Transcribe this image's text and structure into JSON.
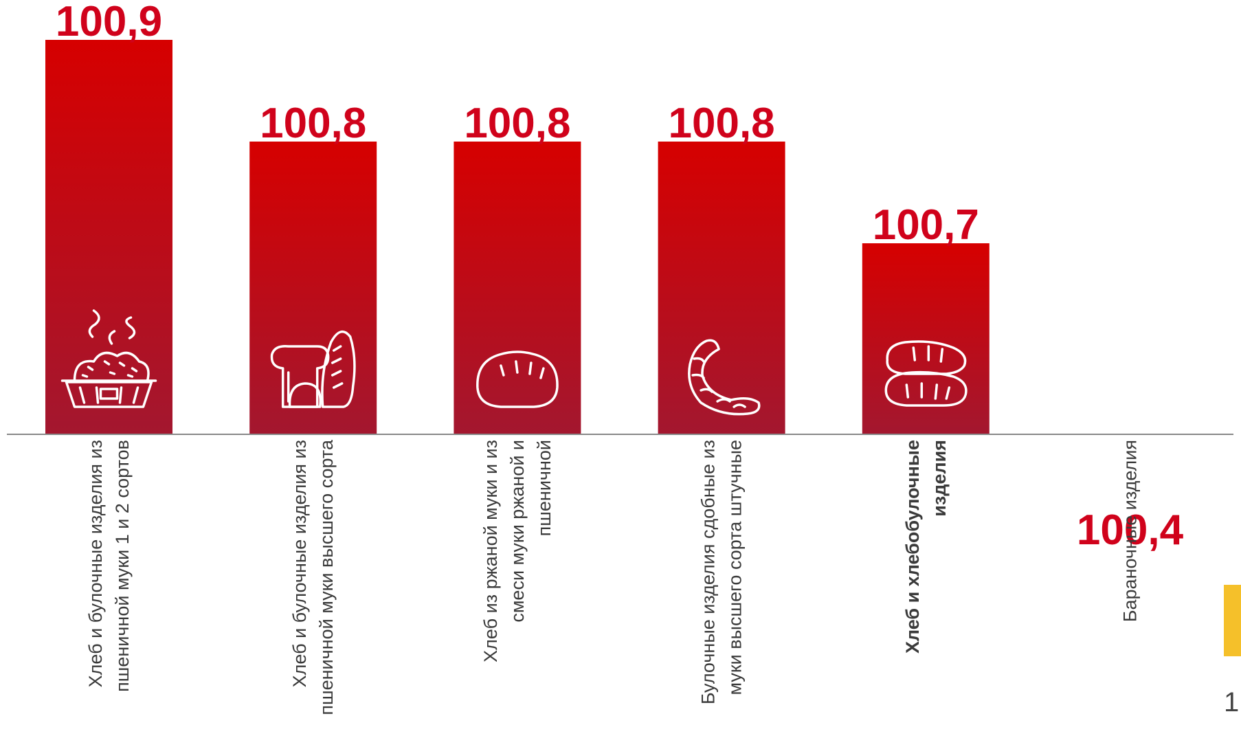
{
  "chart_data": {
    "type": "bar",
    "categories": [
      "Хлеб и булочные изделия из пшеничной муки 1 и 2 сортов",
      "Хлеб и булочные изделия из пшеничной муки высшего сорта",
      "Хлеб из ржаной муки и из смеси муки ржаной и пшеничной",
      "Булочные изделия сдобные из муки высшего сорта штучные",
      "Хлеб и хлебобулочные изделия",
      "Бараночные изделия"
    ],
    "category_lines": [
      [
        "Хлеб и булочные изделия из",
        "пшеничной муки 1  и 2 сортов"
      ],
      [
        "Хлеб и булочные изделия из",
        "пшеничной муки высшего сорта"
      ],
      [
        "Хлеб из ржаной муки и из",
        "смеси муки ржаной и",
        "пшеничной"
      ],
      [
        "Булочные изделия сдобные из",
        "муки высшего сорта штучные"
      ],
      [
        "Хлеб и хлебобулочные",
        "изделия"
      ],
      [
        "Бараночные изделия"
      ]
    ],
    "bold_category_index": 4,
    "values": [
      100.9,
      100.8,
      100.8,
      100.8,
      100.7,
      100.4
    ],
    "value_labels": [
      "100,9",
      "100,8",
      "100,8",
      "100,8",
      "100,7",
      "100,4"
    ],
    "icons": [
      "bread-basket-icon",
      "bread-loaves-icon",
      "rye-loaf-icon",
      "croissant-icon",
      "bread-rolls-icon",
      "bagels-icon"
    ],
    "title": "",
    "xlabel": "",
    "ylabel": "",
    "grid": false,
    "legend": "none",
    "colors": {
      "bar_top": "#d60000",
      "bar_bottom": "#a3172f",
      "label": "#d0021b",
      "axis": "#888888",
      "accent": "#f5c02a"
    }
  },
  "page": {
    "number": "1"
  }
}
